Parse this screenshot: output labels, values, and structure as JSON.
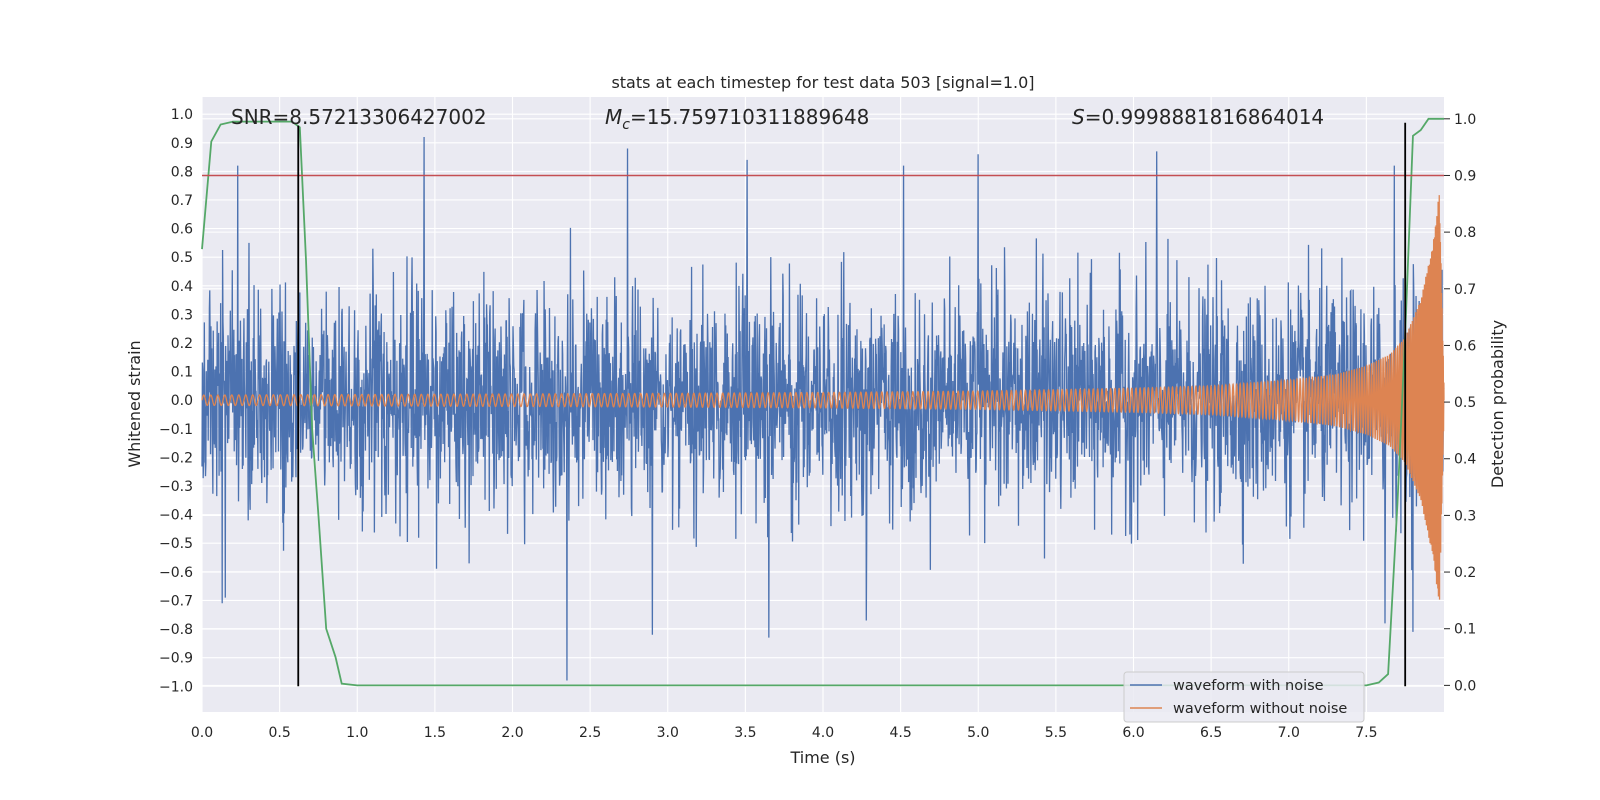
{
  "chart_data": {
    "type": "line",
    "title": "stats at each timestep for test data 503 [signal=1.0]",
    "xlabel": "Time (s)",
    "ylabel_left": "Whitened strain",
    "ylabel_right": "Detection probability",
    "xlim": [
      0.0,
      8.0
    ],
    "ylim_left": [
      -1.09,
      1.06
    ],
    "ylim_right": [
      -0.047,
      1.0385
    ],
    "x_ticks": [
      "0.0",
      "0.5",
      "1.0",
      "1.5",
      "2.0",
      "2.5",
      "3.0",
      "3.5",
      "4.0",
      "4.5",
      "5.0",
      "5.5",
      "6.0",
      "6.5",
      "7.0",
      "7.5"
    ],
    "y_left_ticks": [
      "1.0",
      "0.9",
      "0.8",
      "0.7",
      "0.6",
      "0.5",
      "0.4",
      "0.3",
      "0.2",
      "0.1",
      "0.0",
      "−0.1",
      "−0.2",
      "−0.3",
      "−0.4",
      "−0.5",
      "−0.6",
      "−0.7",
      "−0.8",
      "−0.9",
      "−1.0"
    ],
    "y_right_ticks": [
      "1.0",
      "0.9",
      "0.8",
      "0.7",
      "0.6",
      "0.5",
      "0.4",
      "0.3",
      "0.2",
      "0.1",
      "0.0"
    ],
    "annotations": {
      "snr_label": "SNR=8.57213306427002",
      "mc_symbol": "M",
      "mc_sub": "c",
      "mc_value": "=15.759710311889648",
      "s_symbol": "S",
      "s_value": "=0.9998881816864014"
    },
    "threshold_line": {
      "axis": "right",
      "value": 0.9,
      "color": "#c44e52"
    },
    "vertical_lines": [
      {
        "x": 0.62,
        "y_from": -1.0,
        "y_to": 0.96,
        "color": "#000000"
      },
      {
        "x": 7.75,
        "y_from": -1.0,
        "y_to": 0.97,
        "color": "#000000"
      }
    ],
    "series": [
      {
        "name": "waveform with noise",
        "color": "#4c72b0",
        "axis": "left",
        "description": "noisy whitened strain, roughly within -0.5..0.5 with peaks up to 0.92 and troughs to -0.98",
        "peaks": [
          {
            "x": 0.23,
            "y": 0.82
          },
          {
            "x": 1.43,
            "y": 0.92
          },
          {
            "x": 2.74,
            "y": 0.88
          },
          {
            "x": 3.51,
            "y": 0.84
          },
          {
            "x": 4.52,
            "y": 0.82
          },
          {
            "x": 5.0,
            "y": 0.86
          },
          {
            "x": 6.15,
            "y": 0.87
          },
          {
            "x": 7.68,
            "y": 0.82
          }
        ],
        "troughs": [
          {
            "x": 0.13,
            "y": -0.71
          },
          {
            "x": 0.15,
            "y": -0.69
          },
          {
            "x": 2.35,
            "y": -0.98
          },
          {
            "x": 2.9,
            "y": -0.82
          },
          {
            "x": 3.65,
            "y": -0.83
          },
          {
            "x": 4.28,
            "y": -0.77
          },
          {
            "x": 7.62,
            "y": -0.78
          },
          {
            "x": 7.8,
            "y": -0.81
          }
        ]
      },
      {
        "name": "waveform without noise",
        "color": "#dd8452",
        "axis": "left",
        "description": "chirp signal, amplitude about 0.02 early, growing to about 0.73 at t≈7.95 s",
        "envelope": {
          "x": [
            0.0,
            1.0,
            2.0,
            3.0,
            4.0,
            5.0,
            6.0,
            6.5,
            7.0,
            7.3,
            7.5,
            7.65,
            7.75,
            7.85,
            7.93,
            7.97,
            8.0
          ],
          "y": [
            0.018,
            0.02,
            0.022,
            0.024,
            0.027,
            0.032,
            0.042,
            0.05,
            0.07,
            0.09,
            0.12,
            0.16,
            0.22,
            0.35,
            0.55,
            0.73,
            0.05
          ]
        }
      },
      {
        "name": "detection probability",
        "color": "#55a868",
        "axis": "right",
        "x": [
          0.0,
          0.06,
          0.12,
          0.2,
          0.3,
          0.4,
          0.5,
          0.58,
          0.63,
          0.67,
          0.71,
          0.75,
          0.8,
          0.86,
          0.9,
          1.0,
          2.0,
          3.0,
          4.0,
          5.0,
          6.0,
          7.0,
          7.5,
          7.58,
          7.64,
          7.7,
          7.75,
          7.8,
          7.85,
          7.9,
          7.95,
          8.0
        ],
        "y": [
          0.77,
          0.96,
          0.99,
          0.995,
          0.995,
          0.995,
          0.995,
          0.995,
          0.985,
          0.75,
          0.45,
          0.3,
          0.1,
          0.05,
          0.003,
          0.0,
          0.0,
          0.0,
          0.0,
          0.0,
          0.0,
          0.0,
          0.0,
          0.005,
          0.02,
          0.32,
          0.62,
          0.97,
          0.98,
          1.0,
          1.0,
          1.0
        ]
      }
    ],
    "legend": {
      "position": "lower-right",
      "entries": [
        {
          "label": "waveform with noise",
          "color": "#4c72b0"
        },
        {
          "label": "waveform without noise",
          "color": "#dd8452"
        }
      ]
    }
  }
}
